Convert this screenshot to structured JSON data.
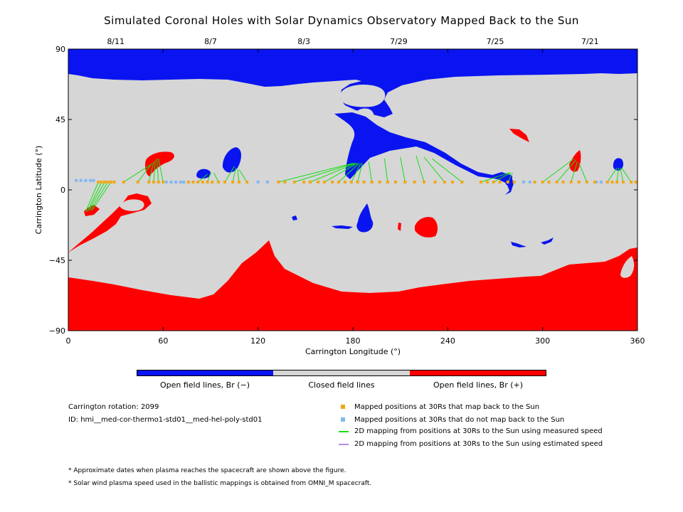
{
  "title": "Simulated Coronal Holes with Solar Dynamics Observatory Mapped Back to the Sun",
  "chart_data": {
    "type": "scatter",
    "title": "Simulated Coronal Holes with Solar Dynamics Observatory Mapped Back to the Sun",
    "xlabel": "Carrington Longitude (°)",
    "ylabel": "Carrington Latitude (°)",
    "xlim": [
      0,
      360
    ],
    "ylim": [
      -90,
      90
    ],
    "x_ticks": [
      0,
      60,
      120,
      180,
      240,
      300,
      360
    ],
    "y_ticks": [
      -90,
      -45,
      0,
      45,
      90
    ],
    "date_ticks": [
      {
        "lon": 30,
        "label": "8/11"
      },
      {
        "lon": 90,
        "label": "8/7"
      },
      {
        "lon": 149,
        "label": "8/3"
      },
      {
        "lon": 209,
        "label": "7/29"
      },
      {
        "lon": 270,
        "label": "7/25"
      },
      {
        "lon": 330,
        "label": "7/21"
      }
    ],
    "colors": {
      "open_negative": "#0a14f0",
      "closed": "#d6d6d6",
      "open_positive": "#ff0000",
      "mapped": "#f0a818",
      "unmapped": "#82b8f2",
      "measured": "#14e014",
      "estimated": "#b88ae6"
    },
    "mapped_positions_30Rs": [
      [
        19,
        5
      ],
      [
        21,
        5
      ],
      [
        23,
        5
      ],
      [
        25,
        5
      ],
      [
        27,
        5
      ],
      [
        29,
        5
      ],
      [
        35,
        5
      ],
      [
        44,
        5
      ],
      [
        51,
        5
      ],
      [
        54,
        5
      ],
      [
        57,
        5
      ],
      [
        60,
        5
      ],
      [
        76,
        5
      ],
      [
        79,
        5
      ],
      [
        82,
        5
      ],
      [
        85,
        5
      ],
      [
        88,
        5
      ],
      [
        91,
        5
      ],
      [
        95,
        5
      ],
      [
        99,
        5
      ],
      [
        104,
        5
      ],
      [
        108,
        5
      ],
      [
        113,
        5
      ],
      [
        133,
        5
      ],
      [
        137,
        5
      ],
      [
        143,
        5
      ],
      [
        149,
        5
      ],
      [
        153,
        5
      ],
      [
        158,
        5
      ],
      [
        162,
        5
      ],
      [
        167,
        5
      ],
      [
        171,
        5
      ],
      [
        175,
        5
      ],
      [
        179,
        5
      ],
      [
        183,
        5
      ],
      [
        187,
        5
      ],
      [
        192,
        5
      ],
      [
        197,
        5
      ],
      [
        202,
        5
      ],
      [
        207,
        5
      ],
      [
        213,
        5
      ],
      [
        219,
        5
      ],
      [
        225,
        5
      ],
      [
        232,
        5
      ],
      [
        238,
        5
      ],
      [
        243,
        5
      ],
      [
        249,
        5
      ],
      [
        261,
        5
      ],
      [
        265,
        5
      ],
      [
        269,
        5
      ],
      [
        273,
        5
      ],
      [
        278,
        5
      ],
      [
        282,
        5
      ],
      [
        295,
        5
      ],
      [
        300,
        5
      ],
      [
        304,
        5
      ],
      [
        309,
        5
      ],
      [
        313,
        5
      ],
      [
        318,
        5
      ],
      [
        323,
        5
      ],
      [
        328,
        5
      ],
      [
        333,
        5
      ],
      [
        341,
        5
      ],
      [
        344,
        5
      ],
      [
        347,
        5
      ],
      [
        351,
        5
      ],
      [
        356,
        5
      ],
      [
        359,
        5
      ]
    ],
    "unmapped_positions_30Rs": [
      [
        5,
        6
      ],
      [
        8,
        6
      ],
      [
        11,
        6
      ],
      [
        14,
        6
      ],
      [
        16,
        6
      ],
      [
        62,
        5
      ],
      [
        65,
        5
      ],
      [
        68,
        5
      ],
      [
        71,
        5
      ],
      [
        73,
        5
      ],
      [
        120,
        5
      ],
      [
        126,
        5
      ],
      [
        288,
        5
      ],
      [
        292,
        5
      ],
      [
        334,
        5
      ],
      [
        337,
        5
      ]
    ],
    "measured_speed_mappings": [
      [
        [
          19,
          5
        ],
        [
          11,
          -14
        ]
      ],
      [
        [
          21,
          5
        ],
        [
          12,
          -14
        ]
      ],
      [
        [
          23,
          5
        ],
        [
          13,
          -13
        ]
      ],
      [
        [
          25,
          5
        ],
        [
          14,
          -13
        ]
      ],
      [
        [
          27,
          5
        ],
        [
          15,
          -13
        ]
      ],
      [
        [
          35,
          5
        ],
        [
          52,
          16
        ]
      ],
      [
        [
          44,
          5
        ],
        [
          53,
          17
        ]
      ],
      [
        [
          51,
          5
        ],
        [
          54,
          18
        ]
      ],
      [
        [
          54,
          5
        ],
        [
          55,
          19
        ]
      ],
      [
        [
          57,
          5
        ],
        [
          56,
          20
        ]
      ],
      [
        [
          60,
          5
        ],
        [
          57,
          20
        ]
      ],
      [
        [
          82,
          5
        ],
        [
          88,
          10
        ]
      ],
      [
        [
          88,
          5
        ],
        [
          90,
          11
        ]
      ],
      [
        [
          95,
          5
        ],
        [
          92,
          11
        ]
      ],
      [
        [
          99,
          5
        ],
        [
          105,
          15
        ]
      ],
      [
        [
          104,
          5
        ],
        [
          106,
          14
        ]
      ],
      [
        [
          108,
          5
        ],
        [
          107,
          13
        ]
      ],
      [
        [
          113,
          5
        ],
        [
          108,
          13
        ]
      ],
      [
        [
          133,
          5
        ],
        [
          180,
          17
        ]
      ],
      [
        [
          143,
          5
        ],
        [
          181,
          17
        ]
      ],
      [
        [
          153,
          5
        ],
        [
          182,
          17
        ]
      ],
      [
        [
          162,
          5
        ],
        [
          183,
          17
        ]
      ],
      [
        [
          171,
          5
        ],
        [
          184,
          17
        ]
      ],
      [
        [
          179,
          5
        ],
        [
          185,
          17
        ]
      ],
      [
        [
          183,
          5
        ],
        [
          186,
          17
        ]
      ],
      [
        [
          192,
          5
        ],
        [
          190,
          18
        ]
      ],
      [
        [
          202,
          5
        ],
        [
          200,
          20
        ]
      ],
      [
        [
          213,
          5
        ],
        [
          210,
          21
        ]
      ],
      [
        [
          225,
          5
        ],
        [
          220,
          22
        ]
      ],
      [
        [
          238,
          5
        ],
        [
          225,
          21
        ]
      ],
      [
        [
          249,
          5
        ],
        [
          230,
          20
        ]
      ],
      [
        [
          261,
          5
        ],
        [
          279,
          11
        ]
      ],
      [
        [
          269,
          5
        ],
        [
          280,
          11
        ]
      ],
      [
        [
          278,
          5
        ],
        [
          281,
          11
        ]
      ],
      [
        [
          300,
          5
        ],
        [
          320,
          20
        ]
      ],
      [
        [
          309,
          5
        ],
        [
          321,
          19
        ]
      ],
      [
        [
          318,
          5
        ],
        [
          322,
          18
        ]
      ],
      [
        [
          328,
          5
        ],
        [
          323,
          17
        ]
      ],
      [
        [
          341,
          5
        ],
        [
          347,
          14
        ]
      ],
      [
        [
          347,
          5
        ],
        [
          348,
          14
        ]
      ],
      [
        [
          351,
          5
        ],
        [
          349,
          14
        ]
      ],
      [
        [
          356,
          5
        ],
        [
          350,
          14
        ]
      ]
    ]
  },
  "colorbar": {
    "labels": [
      "Open field lines, Br (−)",
      "Closed field lines",
      "Open field lines, Br (+)"
    ]
  },
  "info": {
    "rotation": "Carrington rotation: 2099",
    "id": "ID: hmi__med-cor-thermo1-std01__med-hel-poly-std01"
  },
  "legend": [
    {
      "label": "Mapped positions at 30Rs that map back to the Sun",
      "kind": "square",
      "color": "#f0a818"
    },
    {
      "label": "Mapped positions at 30Rs that do not map back to the Sun",
      "kind": "square",
      "color": "#82b8f2"
    },
    {
      "label": "2D mapping from positions at 30Rs to the Sun using measured speed",
      "kind": "line",
      "color": "#14e014"
    },
    {
      "label": "2D mapping from positions at 30Rs to the Sun using estimated speed",
      "kind": "line",
      "color": "#b88ae6"
    }
  ],
  "footnotes": [
    "* Approximate dates when plasma reaches the spacecraft are shown above the figure.",
    "* Solar wind plasma speed used in the ballistic mappings is obtained from OMNI_M spacecraft."
  ]
}
